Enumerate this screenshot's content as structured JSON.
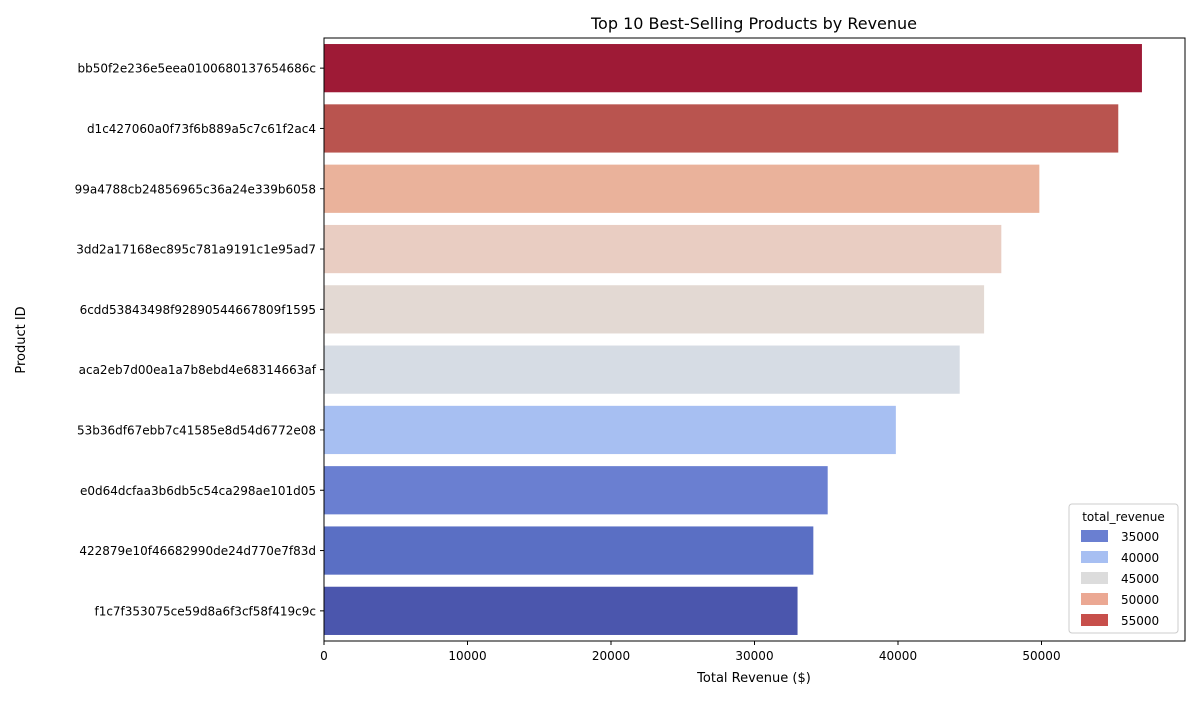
{
  "chart_data": {
    "type": "bar",
    "orientation": "horizontal",
    "title": "Top 10 Best-Selling Products by Revenue",
    "xlabel": "Total Revenue ($)",
    "ylabel": "Product ID",
    "xlim": [
      0,
      60000
    ],
    "xticks": [
      0,
      10000,
      20000,
      30000,
      40000,
      50000
    ],
    "grid": false,
    "categories": [
      "bb50f2e236e5eea0100680137654686c",
      "d1c427060a0f73f6b889a5c7c61f2ac4",
      "99a4788cb24856965c36a24e339b6058",
      "3dd2a17168ec895c781a9191c1e95ad7",
      "6cdd53843498f92890544667809f1595",
      "aca2eb7d00ea1a7b8ebd4e68314663af",
      "53b36df67ebb7c41585e8d54d6772e08",
      "e0d64dcfaa3b6db5c54ca298ae101d05",
      "422879e10f46682990de24d770e7f83d",
      "f1c7f353075ce59d8a6f3cf58f419c9c"
    ],
    "values": [
      57000,
      55350,
      49850,
      47200,
      46000,
      44300,
      39850,
      35100,
      34100,
      33000
    ],
    "bar_colors": [
      "#9e1a36",
      "#b9544f",
      "#eab29b",
      "#e9cdc2",
      "#e3d9d3",
      "#d6dce4",
      "#a7bff2",
      "#6a7fd1",
      "#5a6fc4",
      "#4b56ad"
    ],
    "legend": {
      "title": "total_revenue",
      "position": "bottom-right",
      "entries": [
        {
          "label": "35000",
          "color": "#6a7fd1"
        },
        {
          "label": "40000",
          "color": "#a7bff2"
        },
        {
          "label": "45000",
          "color": "#dcdcdc"
        },
        {
          "label": "50000",
          "color": "#eba893"
        },
        {
          "label": "55000",
          "color": "#c74f4b"
        }
      ]
    }
  }
}
